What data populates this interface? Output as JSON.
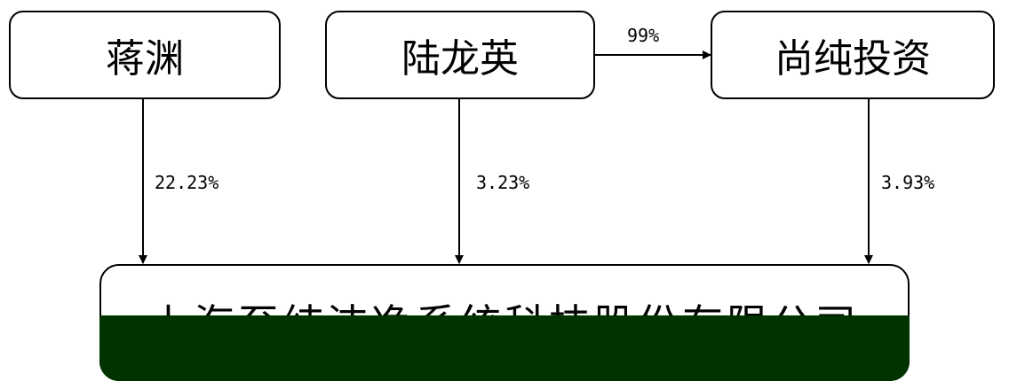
{
  "nodes": {
    "jiang_yuan": "蒋渊",
    "lu_longying": "陆龙英",
    "shangchun": "尚纯投资",
    "company": "上海至纯洁净系统科技股份有限公司"
  },
  "edges": {
    "lu_to_shangchun": "99%",
    "jiang_to_company": "22.23%",
    "lu_to_company": "3.23%",
    "shangchun_to_company": "3.93%"
  }
}
